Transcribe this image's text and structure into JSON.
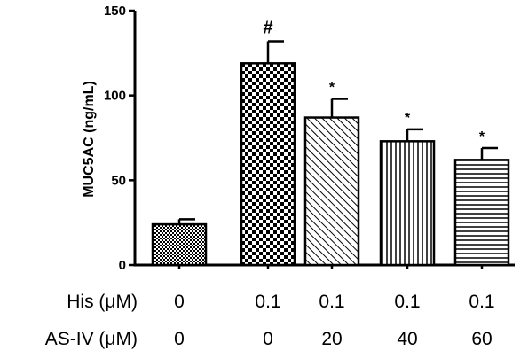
{
  "chart_data": {
    "type": "bar",
    "ylabel": "MUC5AC (ng/mL)",
    "ylim": [
      0,
      150
    ],
    "yticks": [
      0,
      50,
      100,
      150
    ],
    "grid": false,
    "values": [
      24,
      119,
      87,
      73,
      62
    ],
    "errors": [
      3,
      13,
      11,
      7,
      7
    ],
    "fill_patterns": [
      "fine-checker",
      "checkerboard",
      "diagonal-hatch",
      "vertical-lines",
      "horizontal-lines"
    ],
    "annotations": [
      "",
      "#",
      "*",
      "*",
      "*"
    ],
    "condition_rows": [
      {
        "label": "His (μM)",
        "values": [
          "0",
          "0.1",
          "0.1",
          "0.1",
          "0.1"
        ]
      },
      {
        "label": "AS-IV (μM)",
        "values": [
          "0",
          "0",
          "20",
          "40",
          "60"
        ]
      }
    ]
  }
}
